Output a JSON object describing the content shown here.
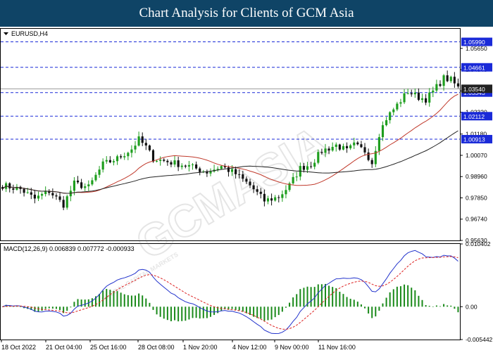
{
  "banner": {
    "title": "Chart Analysis for Clients of GCM Asia"
  },
  "chart_data": [
    {
      "type": "candlestick",
      "symbol_label": "EURUSD,H4",
      "ylim": [
        0.9563,
        1.0667
      ],
      "y_ticks": [
        "1.05650",
        "1.04540",
        "1.03430",
        "1.02320",
        "1.01180",
        "1.00070",
        "0.98960",
        "0.97850",
        "0.96740",
        "0.95630"
      ],
      "x_ticks": [
        "18 Oct 2022",
        "21 Oct 04:00",
        "25 Oct 16:00",
        "28 Oct 08:00",
        "1 Nov 20:00",
        "4 Nov 12:00",
        "9 Nov 00:00",
        "11 Nov 16:00"
      ],
      "current_price": {
        "value": 1.0354,
        "label": "1.03540"
      },
      "levels": [
        {
          "value": 1.0599,
          "label": "1.05990"
        },
        {
          "value": 1.04661,
          "label": "1.04661"
        },
        {
          "value": 1.03343,
          "label": "1.03343"
        },
        {
          "value": 1.02112,
          "label": "1.02112"
        },
        {
          "value": 1.00913,
          "label": "1.00913"
        }
      ],
      "close_anchors": [
        [
          0,
          0.985
        ],
        [
          5,
          0.983
        ],
        [
          9,
          0.978
        ],
        [
          13,
          0.982
        ],
        [
          17,
          0.975
        ],
        [
          20,
          0.986
        ],
        [
          24,
          0.984
        ],
        [
          28,
          0.996
        ],
        [
          32,
          0.999
        ],
        [
          36,
          1.004
        ],
        [
          38,
          1.009
        ],
        [
          40,
          1.005
        ],
        [
          42,
          0.999
        ],
        [
          47,
          0.997
        ],
        [
          52,
          0.995
        ],
        [
          57,
          0.992
        ],
        [
          61,
          0.995
        ],
        [
          65,
          0.991
        ],
        [
          69,
          0.985
        ],
        [
          73,
          0.977
        ],
        [
          77,
          0.979
        ],
        [
          80,
          0.985
        ],
        [
          83,
          0.994
        ],
        [
          86,
          0.996
        ],
        [
          89,
          1.003
        ],
        [
          93,
          1.006
        ],
        [
          96,
          1.003
        ],
        [
          98,
          1.006
        ],
        [
          101,
          1.003
        ],
        [
          103,
          0.997
        ],
        [
          105,
          1.012
        ],
        [
          107,
          1.02
        ],
        [
          110,
          1.027
        ],
        [
          113,
          1.034
        ],
        [
          116,
          1.031
        ],
        [
          118,
          1.03
        ],
        [
          120,
          1.034
        ],
        [
          123,
          1.041
        ],
        [
          125,
          1.04
        ],
        [
          127,
          1.036
        ]
      ],
      "moving_averages": [
        {
          "name": "MA fast",
          "period": 21,
          "color": "#c0392b"
        },
        {
          "name": "MA slow",
          "period": 50,
          "color": "#222222"
        }
      ],
      "colors": {
        "bull": "#1e9e1e",
        "bear": "#111111",
        "level": "#1a2ad8",
        "price_line": "#999999"
      }
    },
    {
      "type": "macd",
      "label": "MACD(12,26,9) 0.006839 0.007772 -0.000933",
      "ylim": [
        -0.005442,
        0.010402
      ],
      "y_ticks": [
        "0.010402",
        "0.00",
        "-0.005442"
      ],
      "colors": {
        "macd": "#2233cc",
        "signal": "#dd2222",
        "hist": "#1a8a1a"
      }
    }
  ],
  "watermark": {
    "text": "GCMASIA",
    "subtext": "GLOBAL CAPITAL MARKETS"
  }
}
